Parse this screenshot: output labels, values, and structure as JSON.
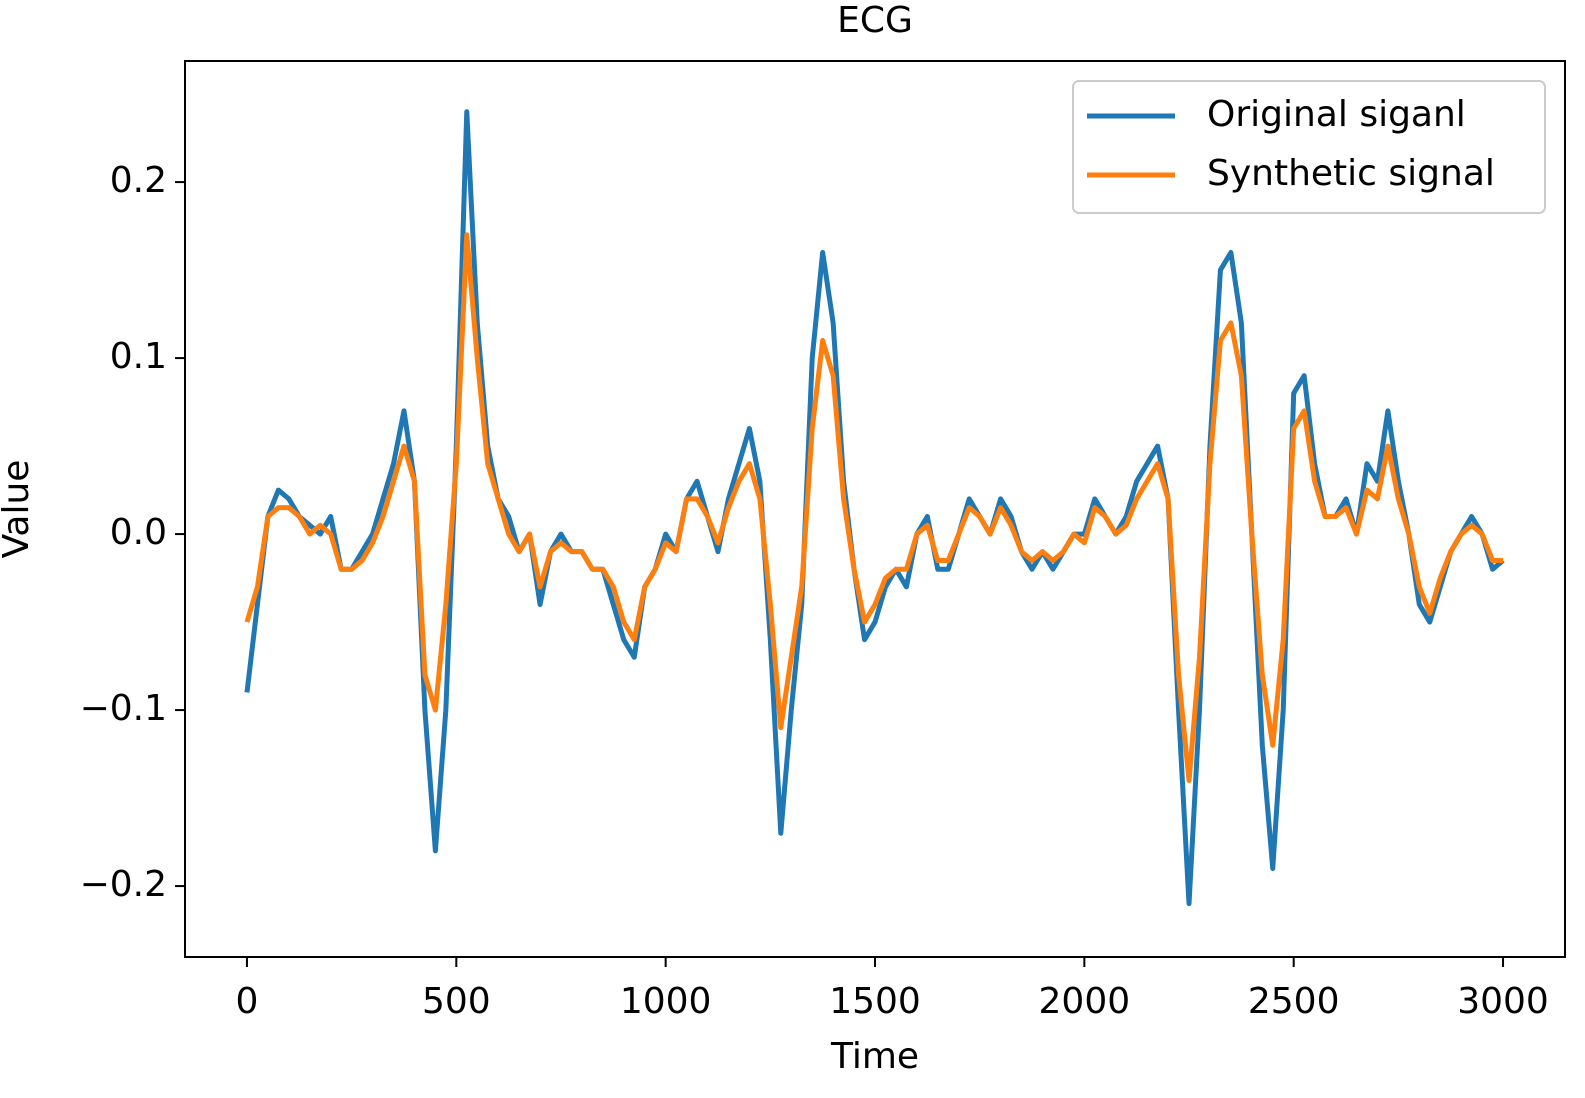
{
  "chart_data": {
    "type": "line",
    "title": "ECG",
    "x_label": "Time",
    "y_label": "Value",
    "x": [
      0,
      25,
      50,
      75,
      100,
      125,
      150,
      175,
      200,
      225,
      250,
      275,
      300,
      325,
      350,
      375,
      400,
      425,
      450,
      475,
      500,
      525,
      550,
      575,
      600,
      625,
      650,
      675,
      700,
      725,
      750,
      775,
      800,
      825,
      850,
      875,
      900,
      925,
      950,
      975,
      1000,
      1025,
      1050,
      1075,
      1100,
      1125,
      1150,
      1175,
      1200,
      1225,
      1250,
      1275,
      1300,
      1325,
      1350,
      1375,
      1400,
      1425,
      1450,
      1475,
      1500,
      1525,
      1550,
      1575,
      1600,
      1625,
      1650,
      1675,
      1700,
      1725,
      1750,
      1775,
      1800,
      1825,
      1850,
      1875,
      1900,
      1925,
      1950,
      1975,
      2000,
      2025,
      2050,
      2075,
      2100,
      2125,
      2150,
      2175,
      2200,
      2225,
      2250,
      2275,
      2300,
      2325,
      2350,
      2375,
      2400,
      2425,
      2450,
      2475,
      2500,
      2525,
      2550,
      2575,
      2600,
      2625,
      2650,
      2675,
      2700,
      2725,
      2750,
      2775,
      2800,
      2825,
      2850,
      2875,
      2900,
      2925,
      2950,
      2975,
      3000
    ],
    "series": [
      {
        "name": "Original siganl",
        "color": "#1f77b4",
        "values": [
          -0.09,
          -0.04,
          0.01,
          0.025,
          0.02,
          0.01,
          0.005,
          0.0,
          0.01,
          -0.02,
          -0.02,
          -0.01,
          0.0,
          0.02,
          0.04,
          0.07,
          0.03,
          -0.1,
          -0.18,
          -0.1,
          0.05,
          0.24,
          0.12,
          0.05,
          0.02,
          0.01,
          -0.01,
          0.0,
          -0.04,
          -0.01,
          0.0,
          -0.01,
          -0.01,
          -0.02,
          -0.02,
          -0.04,
          -0.06,
          -0.07,
          -0.03,
          -0.02,
          0.0,
          -0.01,
          0.02,
          0.03,
          0.01,
          -0.01,
          0.02,
          0.04,
          0.06,
          0.03,
          -0.06,
          -0.17,
          -0.1,
          -0.04,
          0.1,
          0.16,
          0.12,
          0.03,
          -0.02,
          -0.06,
          -0.05,
          -0.03,
          -0.02,
          -0.03,
          0.0,
          0.01,
          -0.02,
          -0.02,
          0.0,
          0.02,
          0.01,
          0.0,
          0.02,
          0.01,
          -0.01,
          -0.02,
          -0.01,
          -0.02,
          -0.01,
          0.0,
          0.0,
          0.02,
          0.01,
          0.0,
          0.01,
          0.03,
          0.04,
          0.05,
          0.02,
          -0.1,
          -0.21,
          -0.1,
          0.05,
          0.15,
          0.16,
          0.12,
          0.0,
          -0.12,
          -0.19,
          -0.1,
          0.08,
          0.09,
          0.04,
          0.01,
          0.01,
          0.02,
          0.0,
          0.04,
          0.03,
          0.07,
          0.03,
          0.0,
          -0.04,
          -0.05,
          -0.03,
          -0.01,
          0.0,
          0.01,
          0.0,
          -0.02,
          -0.015
        ]
      },
      {
        "name": "Synthetic signal",
        "color": "#ff7f0e",
        "values": [
          -0.05,
          -0.03,
          0.01,
          0.015,
          0.015,
          0.01,
          0.0,
          0.005,
          0.0,
          -0.02,
          -0.02,
          -0.015,
          -0.005,
          0.01,
          0.03,
          0.05,
          0.03,
          -0.08,
          -0.1,
          -0.04,
          0.04,
          0.17,
          0.1,
          0.04,
          0.02,
          0.0,
          -0.01,
          0.0,
          -0.03,
          -0.01,
          -0.005,
          -0.01,
          -0.01,
          -0.02,
          -0.02,
          -0.03,
          -0.05,
          -0.06,
          -0.03,
          -0.02,
          -0.005,
          -0.01,
          0.02,
          0.02,
          0.01,
          -0.005,
          0.015,
          0.03,
          0.04,
          0.02,
          -0.04,
          -0.11,
          -0.07,
          -0.03,
          0.06,
          0.11,
          0.09,
          0.02,
          -0.02,
          -0.05,
          -0.04,
          -0.025,
          -0.02,
          -0.02,
          0.0,
          0.005,
          -0.015,
          -0.015,
          0.0,
          0.015,
          0.01,
          0.0,
          0.015,
          0.005,
          -0.01,
          -0.015,
          -0.01,
          -0.015,
          -0.01,
          0.0,
          -0.005,
          0.015,
          0.01,
          0.0,
          0.005,
          0.02,
          0.03,
          0.04,
          0.02,
          -0.08,
          -0.14,
          -0.07,
          0.04,
          0.11,
          0.12,
          0.09,
          0.0,
          -0.08,
          -0.12,
          -0.06,
          0.06,
          0.07,
          0.03,
          0.01,
          0.01,
          0.015,
          0.0,
          0.025,
          0.02,
          0.05,
          0.02,
          0.0,
          -0.03,
          -0.045,
          -0.025,
          -0.01,
          0.0,
          0.005,
          0.0,
          -0.015,
          -0.015
        ]
      }
    ],
    "xlim": [
      -148,
      3148
    ],
    "ylim": [
      -0.2403,
      0.2688
    ],
    "xticks": [
      0,
      500,
      1000,
      1500,
      2000,
      2500,
      3000
    ],
    "yticks": [
      {
        "value": -0.2,
        "label": "−0.2"
      },
      {
        "value": -0.1,
        "label": "−0.1"
      },
      {
        "value": 0,
        "label": "0.0"
      },
      0.1,
      0.2
    ],
    "legend": "upper right",
    "grid": false
  }
}
